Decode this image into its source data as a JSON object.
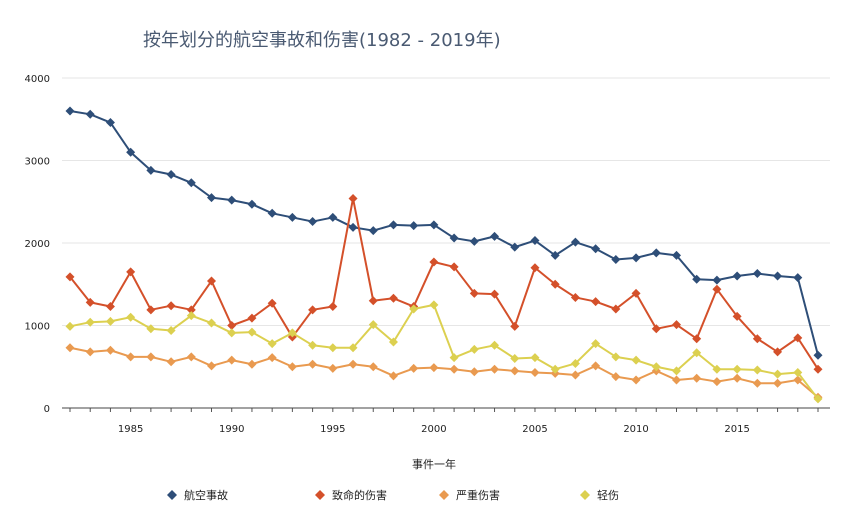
{
  "chart_data": {
    "type": "line",
    "title": "按年划分的航空事故和伤害(1982 - 2019年)",
    "xlabel": "事件一年",
    "ylabel": "",
    "xlim": [
      1982,
      2019
    ],
    "ylim": [
      0,
      4000
    ],
    "yticks": [
      0,
      1000,
      2000,
      3000,
      4000
    ],
    "xticks": [
      1985,
      1990,
      1995,
      2000,
      2005,
      2010,
      2015
    ],
    "grid": "horizontal",
    "legend": "bottom",
    "x": [
      1982,
      1983,
      1984,
      1985,
      1986,
      1987,
      1988,
      1989,
      1990,
      1991,
      1992,
      1993,
      1994,
      1995,
      1996,
      1997,
      1998,
      1999,
      2000,
      2001,
      2002,
      2003,
      2004,
      2005,
      2006,
      2007,
      2008,
      2009,
      2010,
      2011,
      2012,
      2013,
      2014,
      2015,
      2016,
      2017,
      2018,
      2019
    ],
    "series": [
      {
        "name": "航空事故",
        "color": "#2e4e78",
        "marker": "diamond",
        "values": [
          3600,
          3560,
          3460,
          3100,
          2880,
          2830,
          2730,
          2550,
          2520,
          2470,
          2360,
          2310,
          2260,
          2310,
          2190,
          2150,
          2220,
          2210,
          2220,
          2060,
          2020,
          2080,
          1950,
          2030,
          1850,
          2010,
          1930,
          1800,
          1820,
          1880,
          1850,
          1560,
          1550,
          1600,
          1630,
          1600,
          1580,
          640
        ]
      },
      {
        "name": "致命的伤害",
        "color": "#d4502a",
        "marker": "diamond",
        "values": [
          1590,
          1280,
          1230,
          1650,
          1190,
          1240,
          1190,
          1540,
          1000,
          1090,
          1270,
          860,
          1190,
          1230,
          2540,
          1300,
          1330,
          1230,
          1770,
          1710,
          1390,
          1380,
          990,
          1700,
          1500,
          1340,
          1290,
          1200,
          1390,
          960,
          1010,
          840,
          1440,
          1110,
          840,
          680,
          850,
          470
        ]
      },
      {
        "name": "严重伤害",
        "color": "#e99a50",
        "marker": "diamond",
        "values": [
          730,
          680,
          700,
          620,
          620,
          560,
          620,
          510,
          580,
          530,
          610,
          500,
          530,
          480,
          530,
          500,
          390,
          480,
          490,
          470,
          440,
          470,
          450,
          430,
          420,
          400,
          510,
          380,
          340,
          450,
          340,
          360,
          320,
          360,
          300,
          300,
          340,
          130
        ]
      },
      {
        "name": "轻伤",
        "color": "#dcd050",
        "marker": "diamond",
        "values": [
          990,
          1040,
          1050,
          1100,
          960,
          940,
          1120,
          1030,
          910,
          920,
          780,
          910,
          760,
          730,
          730,
          1010,
          800,
          1200,
          1250,
          610,
          710,
          760,
          600,
          610,
          470,
          540,
          780,
          620,
          580,
          500,
          450,
          670,
          470,
          470,
          460,
          410,
          430,
          110
        ]
      }
    ]
  }
}
